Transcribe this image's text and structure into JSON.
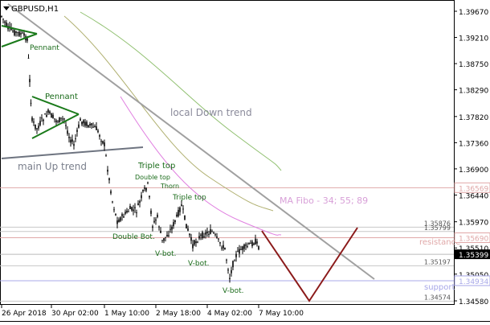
{
  "window": {
    "symbol_title": "GBPUSD,H1",
    "menu_icon": "triangle-down-icon"
  },
  "colors": {
    "background": "#ffffff",
    "candle": "#000000",
    "border": "#000000",
    "trendline": "#a0a0a0",
    "main_up_trend": "#6e7480",
    "pattern": "#1a7a1a",
    "pattern_label": "#1a6b1a",
    "projection": "#8b1a1a",
    "level_resistance": "#e0a8a8",
    "level_support": "#a8a8e8",
    "level_neutral": "#c8c8c8",
    "ma_pink": "#e080e0",
    "ma_olive": "#b0b070",
    "ma_green": "#90c070",
    "ma_label": "#d8a0d8",
    "price_tag_bg": "#ffffff",
    "current_price_bg": "#000000"
  },
  "chart_data": {
    "type": "candlestick",
    "title": "GBPUSD,H1",
    "xlabel": "",
    "ylabel": "",
    "ylim": [
      1.3444,
      1.3982
    ],
    "grid": false,
    "price_axis_ticks": [
      "1.39670",
      "1.39210",
      "1.38750",
      "1.38290",
      "1.37820",
      "1.37360",
      "1.36900",
      "1.36440",
      "1.35970",
      "1.35510",
      "1.35050",
      "1.34580"
    ],
    "time_axis_labels": [
      "26 Apr 2018",
      "30 Apr 02:00",
      "1 May 10:00",
      "2 May 18:00",
      "4 May 02:00",
      "7 May 10:00"
    ],
    "levels": [
      {
        "price": 1.35876,
        "label": "1.35876",
        "kind": "neutral"
      },
      {
        "price": 1.35799,
        "label": "1.35799",
        "kind": "neutral"
      },
      {
        "price": 1.35197,
        "label": "1.35197",
        "kind": "neutral"
      },
      {
        "price": 1.34574,
        "label": "1.34574",
        "kind": "neutral"
      },
      {
        "price": 1.36569,
        "label": "1.36569",
        "kind": "resistance"
      },
      {
        "price": 1.3569,
        "label": "1.35690",
        "kind": "resistance"
      },
      {
        "price": 1.34934,
        "label": "1.34934",
        "kind": "support"
      }
    ],
    "current_price": {
      "price": 1.35399,
      "label": "1.35399"
    },
    "annotations": {
      "local_down_trend": "local Down trend",
      "main_up_trend": "main Up trend",
      "ma_fibo": "MA Fibo - 34; 55; 89",
      "resistance": "resistance",
      "support": "support",
      "pennant_1": "Pennant",
      "pennant_2": "Pennant",
      "triple_top": "Triple top",
      "double_top": "Double top",
      "thorn": "Thorn",
      "triple_top_2": "Triple top",
      "double_bot": "Double Bot.",
      "v_bot_1": "V-bot.",
      "v_bot_2": "V-bot.",
      "v_bot_3": "V-bot."
    }
  }
}
